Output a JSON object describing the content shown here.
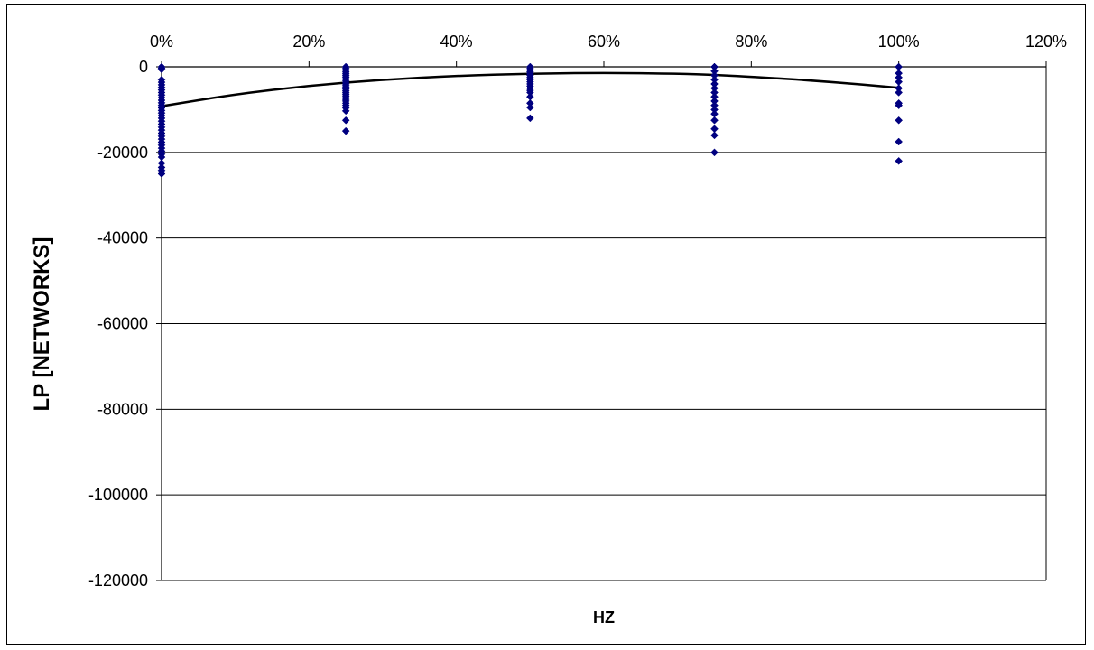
{
  "chart_data": {
    "type": "scatter",
    "xlabel": "HZ",
    "ylabel": "LP [NETWORKS]",
    "x_tick_labels": [
      "0%",
      "20%",
      "40%",
      "60%",
      "80%",
      "100%",
      "120%"
    ],
    "y_tick_labels": [
      "0",
      "-20000",
      "-40000",
      "-60000",
      "-80000",
      "-100000",
      "-120000"
    ],
    "xlim": [
      0,
      1.2
    ],
    "ylim": [
      -120000,
      0
    ],
    "x_axis_position": "top",
    "grid": "horizontal",
    "legend": "none",
    "colors": {
      "points": "#000080",
      "trend": "#000000",
      "grid": "#000000"
    },
    "series": [
      {
        "type": "scatter",
        "points": [
          [
            0,
            0
          ],
          [
            0,
            -300
          ],
          [
            0,
            -600
          ],
          [
            0,
            -3000
          ],
          [
            0,
            -3600
          ],
          [
            0,
            -4200
          ],
          [
            0,
            -4800
          ],
          [
            0,
            -5400
          ],
          [
            0,
            -6000
          ],
          [
            0,
            -6600
          ],
          [
            0,
            -7200
          ],
          [
            0,
            -7800
          ],
          [
            0,
            -8400
          ],
          [
            0,
            -9000
          ],
          [
            0,
            -9600
          ],
          [
            0,
            -10200
          ],
          [
            0,
            -10800
          ],
          [
            0,
            -11400
          ],
          [
            0,
            -12000
          ],
          [
            0,
            -12700
          ],
          [
            0,
            -13400
          ],
          [
            0,
            -14100
          ],
          [
            0,
            -14800
          ],
          [
            0,
            -15500
          ],
          [
            0,
            -16200
          ],
          [
            0,
            -16900
          ],
          [
            0,
            -17600
          ],
          [
            0,
            -18300
          ],
          [
            0,
            -19000
          ],
          [
            0,
            -19700
          ],
          [
            0,
            -20400
          ],
          [
            0,
            -21100
          ],
          [
            0,
            -22500
          ],
          [
            0,
            -23500
          ],
          [
            0,
            -24200
          ],
          [
            0,
            -25000
          ],
          [
            0.25,
            0
          ],
          [
            0.25,
            -400
          ],
          [
            0.25,
            -800
          ],
          [
            0.25,
            -1200
          ],
          [
            0.25,
            -1600
          ],
          [
            0.25,
            -2000
          ],
          [
            0.25,
            -2400
          ],
          [
            0.25,
            -2800
          ],
          [
            0.25,
            -3200
          ],
          [
            0.25,
            -3600
          ],
          [
            0.25,
            -4000
          ],
          [
            0.25,
            -4400
          ],
          [
            0.25,
            -4800
          ],
          [
            0.25,
            -5200
          ],
          [
            0.25,
            -5600
          ],
          [
            0.25,
            -6000
          ],
          [
            0.25,
            -6400
          ],
          [
            0.25,
            -6800
          ],
          [
            0.25,
            -7200
          ],
          [
            0.25,
            -7600
          ],
          [
            0.25,
            -8000
          ],
          [
            0.25,
            -8500
          ],
          [
            0.25,
            -9000
          ],
          [
            0.25,
            -9600
          ],
          [
            0.25,
            -10300
          ],
          [
            0.25,
            -12500
          ],
          [
            0.25,
            -15000
          ],
          [
            0.5,
            0
          ],
          [
            0.5,
            -400
          ],
          [
            0.5,
            -800
          ],
          [
            0.5,
            -1200
          ],
          [
            0.5,
            -1600
          ],
          [
            0.5,
            -2000
          ],
          [
            0.5,
            -2500
          ],
          [
            0.5,
            -3000
          ],
          [
            0.5,
            -3500
          ],
          [
            0.5,
            -4000
          ],
          [
            0.5,
            -4500
          ],
          [
            0.5,
            -5000
          ],
          [
            0.5,
            -5500
          ],
          [
            0.5,
            -6000
          ],
          [
            0.5,
            -7000
          ],
          [
            0.5,
            -8500
          ],
          [
            0.5,
            -9500
          ],
          [
            0.5,
            -12000
          ],
          [
            0.75,
            0
          ],
          [
            0.75,
            -1000
          ],
          [
            0.75,
            -2000
          ],
          [
            0.75,
            -3000
          ],
          [
            0.75,
            -4000
          ],
          [
            0.75,
            -5000
          ],
          [
            0.75,
            -6000
          ],
          [
            0.75,
            -7000
          ],
          [
            0.75,
            -8000
          ],
          [
            0.75,
            -9000
          ],
          [
            0.75,
            -10000
          ],
          [
            0.75,
            -11000
          ],
          [
            0.75,
            -12500
          ],
          [
            0.75,
            -14500
          ],
          [
            0.75,
            -16000
          ],
          [
            0.75,
            -20000
          ],
          [
            1,
            0
          ],
          [
            1,
            -1500
          ],
          [
            1,
            -2500
          ],
          [
            1,
            -3500
          ],
          [
            1,
            -5000
          ],
          [
            1,
            -6000
          ],
          [
            1,
            -8500
          ],
          [
            1,
            -9000
          ],
          [
            1,
            -12500
          ],
          [
            1,
            -17500
          ],
          [
            1,
            -22000
          ]
        ]
      },
      {
        "type": "line",
        "trendline": "polynomial",
        "points": [
          [
            0,
            -9200
          ],
          [
            0.1,
            -6400
          ],
          [
            0.2,
            -4400
          ],
          [
            0.3,
            -3000
          ],
          [
            0.4,
            -2100
          ],
          [
            0.5,
            -1600
          ],
          [
            0.6,
            -1400
          ],
          [
            0.7,
            -1600
          ],
          [
            0.75,
            -1900
          ],
          [
            0.8,
            -2300
          ],
          [
            0.9,
            -3400
          ],
          [
            1,
            -4900
          ]
        ]
      }
    ]
  }
}
